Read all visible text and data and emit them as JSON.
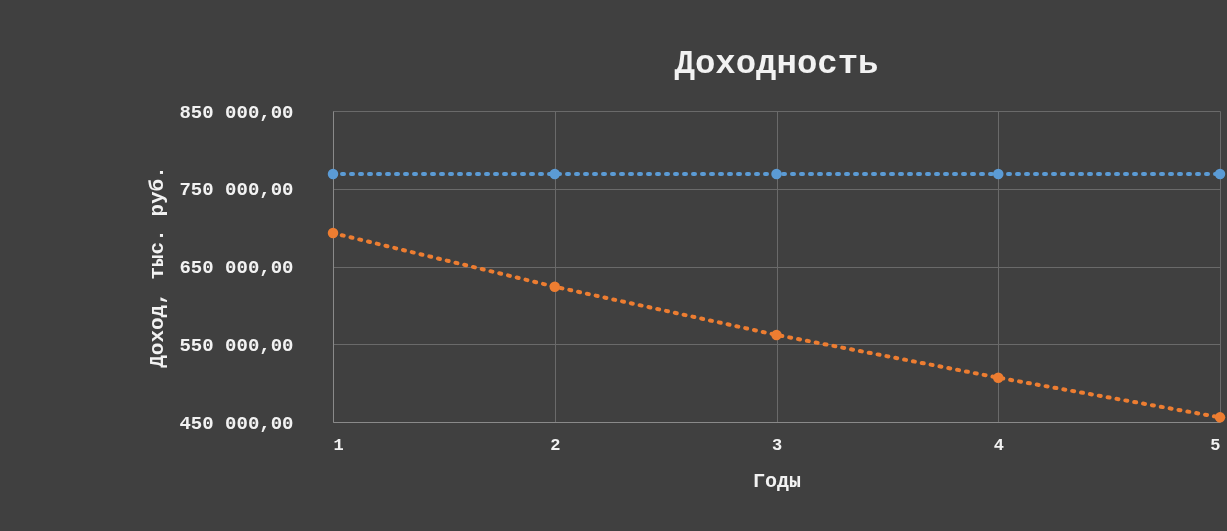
{
  "chart_data": {
    "type": "line",
    "title": "Доходность",
    "xlabel": "Годы",
    "ylabel": "Доход, тыс. руб.",
    "x": [
      1,
      2,
      3,
      4,
      5
    ],
    "series": [
      {
        "color": "#5b9bd5",
        "values": [
          769000,
          769000,
          769000,
          769000,
          769000
        ]
      },
      {
        "color": "#ed7d31",
        "values": [
          693000,
          624000,
          562000,
          507000,
          456000
        ]
      }
    ],
    "xlim": [
      1,
      5
    ],
    "xticks": [
      1,
      2,
      3,
      4,
      5
    ],
    "ylim": [
      450000,
      850000
    ],
    "yticks": [
      {
        "value": 450000,
        "label": "450 000,00"
      },
      {
        "value": 550000,
        "label": "550 000,00"
      },
      {
        "value": 650000,
        "label": "650 000,00"
      },
      {
        "value": 750000,
        "label": "750 000,00"
      },
      {
        "value": 850000,
        "label": "850 000,00"
      }
    ],
    "grid": true,
    "marker": "circle",
    "line_style": "dotted"
  }
}
